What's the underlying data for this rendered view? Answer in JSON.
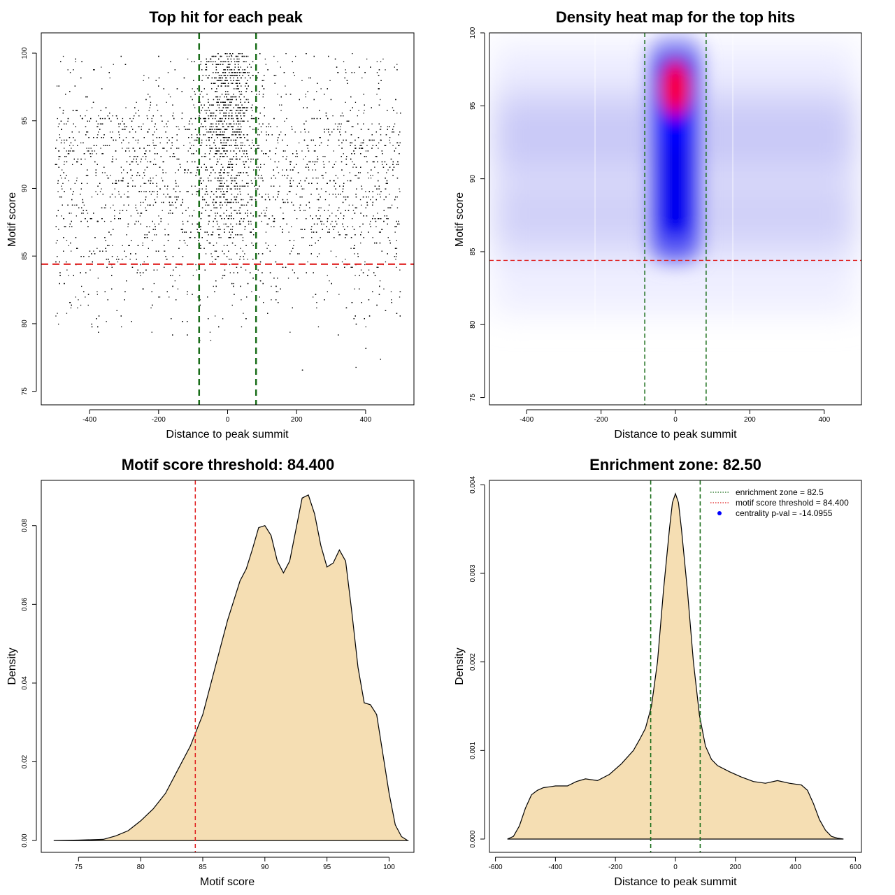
{
  "chart_data": [
    {
      "type": "scatter",
      "title": "Top hit for each peak",
      "xlabel": "Distance to peak summit",
      "ylabel": "Motif score",
      "xlim": [
        -540,
        540
      ],
      "ylim": [
        74,
        101.5
      ],
      "xticks": [
        -400,
        -200,
        0,
        200,
        400
      ],
      "yticks": [
        75,
        80,
        85,
        90,
        95,
        100
      ],
      "vlines": [
        -82.5,
        82.5
      ],
      "hline": 84.4,
      "colors": {
        "points": "#000000",
        "vline": "#1a6e1a",
        "hline": "#e02020"
      }
    },
    {
      "type": "heatmap",
      "title": "Density heat map for the top hits",
      "xlabel": "Distance to peak summit",
      "ylabel": "Motif score",
      "xlim": [
        -500,
        500
      ],
      "ylim": [
        74.5,
        100
      ],
      "xticks": [
        -400,
        -200,
        0,
        200,
        400
      ],
      "yticks": [
        75,
        80,
        85,
        90,
        95,
        100
      ],
      "vlines": [
        -82.5,
        82.5
      ],
      "hline": 84.4,
      "hotspot": {
        "x": 0,
        "y": 96.2
      },
      "colors": {
        "low": "#ffffff",
        "mid": "#0000ff",
        "high": "#ff0000",
        "vline": "#1a6e1a",
        "hline": "#e02020"
      }
    },
    {
      "type": "area",
      "title": "Motif score threshold: 84.400",
      "xlabel": "Motif score",
      "ylabel": "Density",
      "xlim": [
        72,
        102
      ],
      "ylim": [
        -0.003,
        0.0915
      ],
      "xticks": [
        75,
        80,
        85,
        90,
        95,
        100
      ],
      "yticks": [
        0.0,
        0.02,
        0.04,
        0.06,
        0.08
      ],
      "ytick_labels": [
        "0.00",
        "0.02",
        "0.04",
        "0.06",
        "0.08"
      ],
      "vline": 84.4,
      "x": [
        73,
        75,
        77,
        78,
        79,
        80,
        81,
        82,
        83,
        84,
        85,
        86,
        87,
        88,
        88.5,
        89,
        89.5,
        90,
        90.5,
        91,
        91.5,
        92,
        92.5,
        93,
        93.5,
        94,
        94.5,
        95,
        95.5,
        96,
        96.5,
        97,
        97.5,
        98,
        98.5,
        99,
        99.5,
        100,
        100.5,
        101,
        101.5
      ],
      "y": [
        0.0,
        0.0001,
        0.0003,
        0.0012,
        0.0025,
        0.005,
        0.008,
        0.012,
        0.018,
        0.024,
        0.032,
        0.044,
        0.056,
        0.066,
        0.069,
        0.074,
        0.0795,
        0.08,
        0.0775,
        0.071,
        0.068,
        0.071,
        0.079,
        0.087,
        0.0878,
        0.083,
        0.075,
        0.0695,
        0.0705,
        0.0738,
        0.071,
        0.058,
        0.044,
        0.035,
        0.0345,
        0.032,
        0.022,
        0.012,
        0.004,
        0.001,
        0.0
      ],
      "colors": {
        "fill": "#f5deb3",
        "line": "#000000",
        "vline": "#e02020"
      }
    },
    {
      "type": "area",
      "title": "Enrichment zone: 82.50",
      "xlabel": "Distance to peak summit",
      "ylabel": "Density",
      "xlim": [
        -620,
        620
      ],
      "ylim": [
        -0.00015,
        0.00405
      ],
      "xticks": [
        -600,
        -400,
        -200,
        0,
        200,
        400,
        600
      ],
      "yticks": [
        0.0,
        0.001,
        0.002,
        0.003,
        0.004
      ],
      "ytick_labels": [
        "0.000",
        "0.001",
        "0.002",
        "0.003",
        "0.004"
      ],
      "vlines": [
        -82.5,
        82.5
      ],
      "x": [
        -560,
        -540,
        -520,
        -500,
        -480,
        -460,
        -440,
        -420,
        -400,
        -360,
        -330,
        -300,
        -260,
        -220,
        -180,
        -140,
        -120,
        -100,
        -80,
        -60,
        -40,
        -20,
        -10,
        0,
        10,
        20,
        40,
        60,
        80,
        100,
        120,
        140,
        180,
        220,
        260,
        300,
        340,
        380,
        420,
        440,
        460,
        480,
        500,
        520,
        540,
        560
      ],
      "y": [
        0.0,
        3e-05,
        0.00015,
        0.00035,
        0.0005,
        0.00055,
        0.00058,
        0.00059,
        0.0006,
        0.0006,
        0.00065,
        0.00068,
        0.00066,
        0.00073,
        0.00085,
        0.001,
        0.00112,
        0.00125,
        0.0015,
        0.002,
        0.0028,
        0.0035,
        0.0038,
        0.0039,
        0.0038,
        0.0035,
        0.0028,
        0.002,
        0.0014,
        0.00105,
        0.0009,
        0.00083,
        0.00076,
        0.0007,
        0.00065,
        0.00063,
        0.00066,
        0.00063,
        0.00061,
        0.00055,
        0.0004,
        0.00022,
        0.0001,
        3e-05,
        1e-05,
        0.0
      ],
      "legend": [
        {
          "label": "enrichment zone = 82.5",
          "style": "dotted",
          "color": "#1a6e1a"
        },
        {
          "label": "motif score threshold = 84.400",
          "style": "dotted",
          "color": "#e02020"
        },
        {
          "label": "centrality p-val = -14.0955",
          "style": "point",
          "color": "#0000ff"
        }
      ],
      "legend_position": "top-right",
      "colors": {
        "fill": "#f5deb3",
        "line": "#000000",
        "vline": "#1a6e1a"
      }
    }
  ]
}
